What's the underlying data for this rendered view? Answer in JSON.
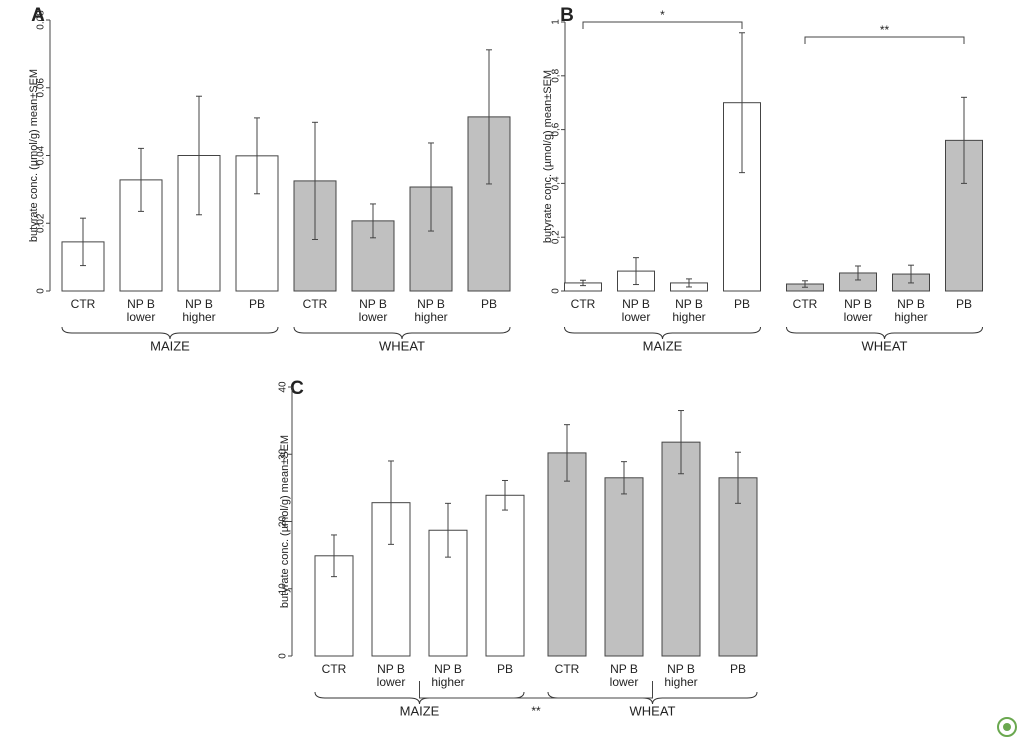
{
  "chart_data": [
    {
      "type": "bar",
      "panel": "A",
      "ylabel": "butyrate conc. (µmol/g) mean±SEM",
      "categories": [
        "CTR",
        "NP B lower",
        "NP B higher",
        "PB"
      ],
      "series": [
        {
          "name": "MAIZE",
          "color": "#ffffff",
          "values": [
            0.0145,
            0.0328,
            0.04,
            0.0399
          ],
          "errors": [
            0.007,
            0.0093,
            0.0175,
            0.0112
          ]
        },
        {
          "name": "WHEAT",
          "color": "#c0c0c0",
          "values": [
            0.0325,
            0.0207,
            0.0307,
            0.0514
          ],
          "errors": [
            0.0173,
            0.005,
            0.013,
            0.0198
          ]
        }
      ],
      "ylim": [
        0,
        0.08
      ],
      "yticks": [
        0,
        0.02,
        0.04,
        0.06,
        0.08
      ]
    },
    {
      "type": "bar",
      "panel": "B",
      "ylabel": "butyrate conc. (µmol/g) mean±SEM",
      "categories": [
        "CTR",
        "NP B lower",
        "NP B higher",
        "PB"
      ],
      "series": [
        {
          "name": "MAIZE",
          "color": "#ffffff",
          "values": [
            0.03,
            0.074,
            0.03,
            0.7
          ],
          "errors": [
            0.01,
            0.05,
            0.015,
            0.26
          ]
        },
        {
          "name": "WHEAT",
          "color": "#c0c0c0",
          "values": [
            0.026,
            0.067,
            0.063,
            0.56
          ],
          "errors": [
            0.012,
            0.026,
            0.033,
            0.16
          ]
        }
      ],
      "ylim": [
        0,
        1
      ],
      "yticks": [
        0,
        {
          "value": 0.2,
          "label": "0,2"
        },
        {
          "value": 0.4,
          "label": "0,4"
        },
        {
          "value": 0.6,
          "label": "0,6"
        },
        {
          "value": 0.8,
          "label": "0,8"
        },
        1
      ],
      "annotations": [
        {
          "text": "*",
          "position": "top"
        },
        {
          "text": "**",
          "position": "top"
        }
      ]
    },
    {
      "type": "bar",
      "panel": "C",
      "ylabel": "butyrate conc. (µmol/g) mean±SEM",
      "categories": [
        "CTR",
        "NP B lower",
        "NP B higher",
        "PB"
      ],
      "series": [
        {
          "name": "MAIZE",
          "color": "#ffffff",
          "values": [
            14.9,
            22.8,
            18.7,
            23.9
          ],
          "errors": [
            3.1,
            6.2,
            4.0,
            2.2
          ]
        },
        {
          "name": "WHEAT",
          "color": "#c0c0c0",
          "values": [
            30.2,
            26.5,
            31.8,
            26.5
          ],
          "errors": [
            4.2,
            2.4,
            4.7,
            3.8
          ]
        }
      ],
      "ylim": [
        0,
        40
      ],
      "yticks": [
        0,
        10,
        20,
        30,
        40
      ],
      "annotations": [
        {
          "text": "**",
          "position": "bottom"
        }
      ]
    }
  ]
}
